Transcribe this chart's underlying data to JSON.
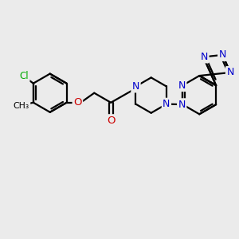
{
  "background_color": "#ebebeb",
  "bond_color": "#000000",
  "bond_width": 1.6,
  "atom_colors": {
    "N": "#0000cc",
    "O": "#cc0000",
    "Cl": "#00aa00"
  },
  "figsize": [
    3.0,
    3.0
  ],
  "dpi": 100,
  "xlim": [
    -1.5,
    11.5
  ],
  "ylim": [
    -1.0,
    8.5
  ]
}
